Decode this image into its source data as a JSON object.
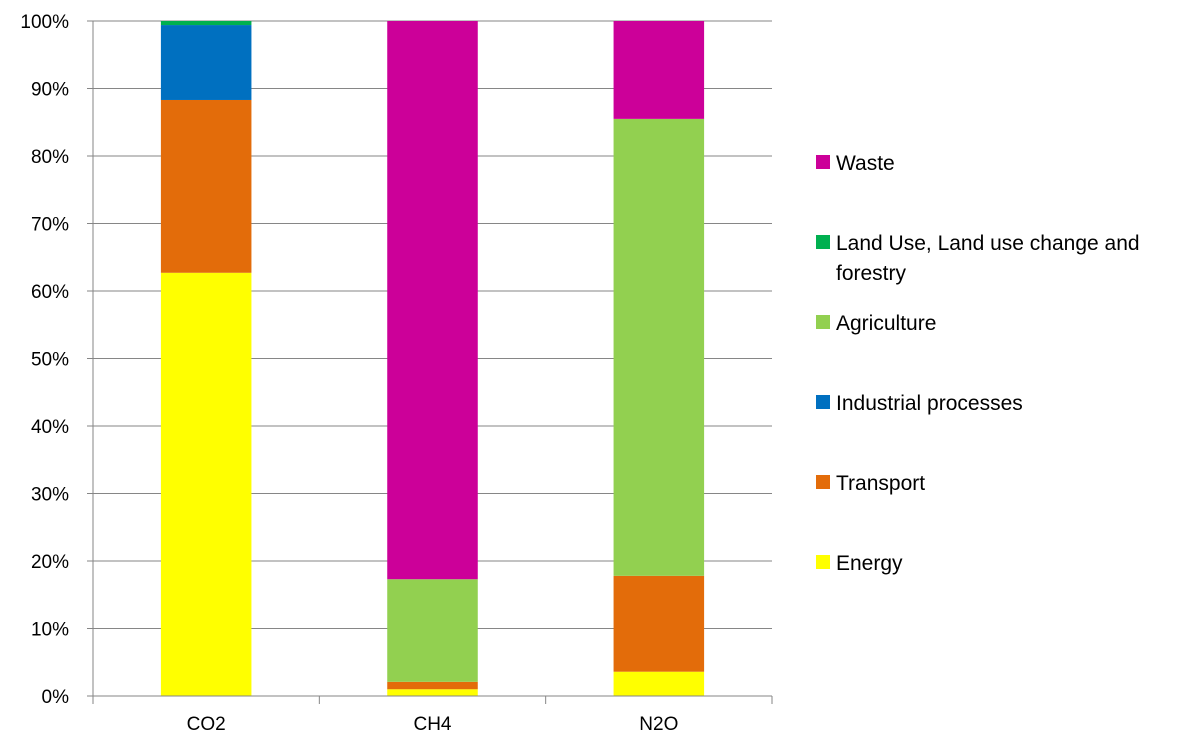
{
  "chart_data": {
    "type": "bar",
    "stacked": true,
    "normalized_percent": true,
    "categories": [
      "CO2",
      "CH4",
      "N2O"
    ],
    "series": [
      {
        "name": "Energy",
        "color": "#FFFF00",
        "values": [
          62.7,
          1.0,
          3.6
        ]
      },
      {
        "name": "Transport",
        "color": "#E36C0A",
        "values": [
          25.6,
          1.1,
          14.2
        ]
      },
      {
        "name": "Industrial processes",
        "color": "#0070C0",
        "values": [
          11.1,
          0.0,
          0.0
        ]
      },
      {
        "name": "Agriculture",
        "color": "#92D050",
        "values": [
          0.0,
          15.2,
          67.7
        ]
      },
      {
        "name": "Land Use, Land use change and forestry",
        "color": "#00B050",
        "values": [
          0.6,
          0.0,
          0.0
        ]
      },
      {
        "name": "Waste",
        "color": "#CC0099",
        "values": [
          0.0,
          82.7,
          14.5
        ]
      }
    ],
    "yticks": [
      "0%",
      "10%",
      "20%",
      "30%",
      "40%",
      "50%",
      "60%",
      "70%",
      "80%",
      "90%",
      "100%"
    ],
    "ylim": [
      0,
      100
    ],
    "grid": true,
    "legend_position": "right",
    "legend_order": [
      "Waste",
      "Land Use, Land use change and forestry",
      "Agriculture",
      "Industrial processes",
      "Transport",
      "Energy"
    ]
  }
}
